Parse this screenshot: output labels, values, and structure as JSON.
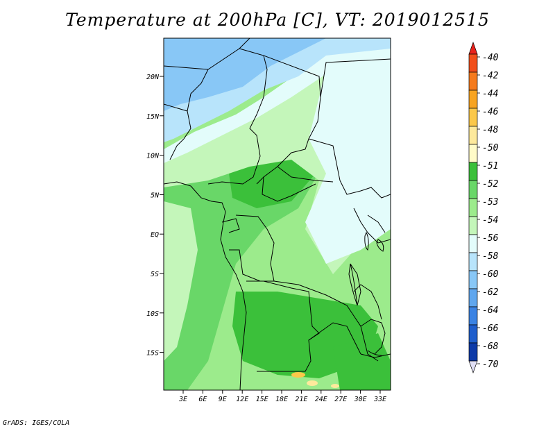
{
  "title": "Temperature at 200hPa [C], VT: 2019012515",
  "credit": "GrADS: IGES/COLA",
  "map": {
    "lat_ticks": [
      "20N",
      "15N",
      "10N",
      "5N",
      "EQ",
      "5S",
      "10S",
      "15S"
    ],
    "lon_ticks": [
      "3E",
      "6E",
      "9E",
      "12E",
      "15E",
      "18E",
      "21E",
      "24E",
      "27E",
      "30E",
      "33E"
    ]
  },
  "colorbar": {
    "levels": [
      "-40",
      "-42",
      "-44",
      "-46",
      "-48",
      "-50",
      "-51",
      "-52",
      "-53",
      "-54",
      "-56",
      "-58",
      "-60",
      "-62",
      "-64",
      "-66",
      "-68",
      "-70"
    ],
    "colors": [
      "#e8221c",
      "#f14e1a",
      "#f57a1c",
      "#f8a421",
      "#fbc84a",
      "#fde99c",
      "#fffbc8",
      "#3bc03a",
      "#69d768",
      "#9ceb8c",
      "#c4f6ba",
      "#e3fcfb",
      "#b8e4fb",
      "#88c7f6",
      "#5fa6ee",
      "#3b83e3",
      "#1f5ecc",
      "#0d3aa8",
      "#0b1d7d"
    ],
    "top_color": "#e8221c",
    "bottom_color": "#e0dff5"
  }
}
